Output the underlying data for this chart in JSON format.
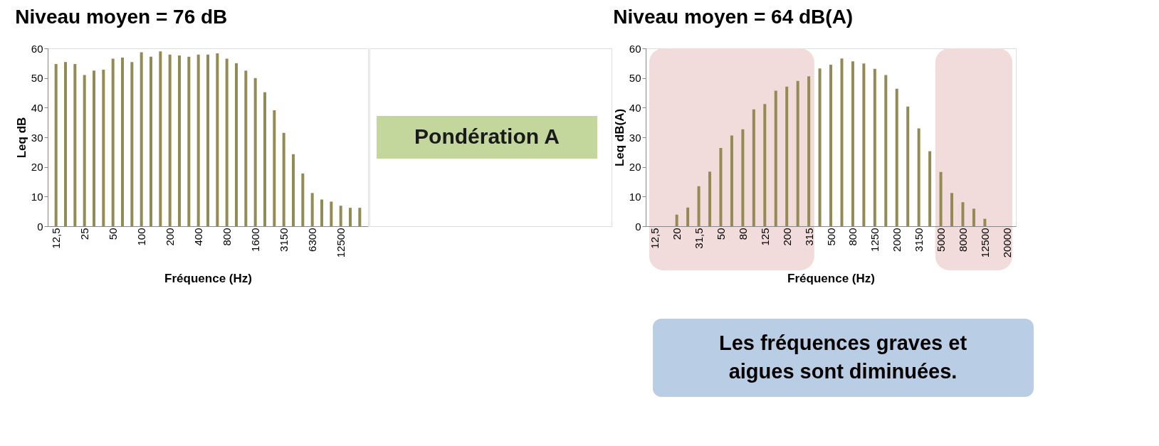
{
  "chart_data": [
    {
      "type": "bar",
      "title": "Niveau moyen = 76 dB",
      "xlabel": "Fréquence (Hz)",
      "ylabel": "Leq dB",
      "categories": [
        "12,5",
        null,
        null,
        "25",
        null,
        null,
        "50",
        null,
        null,
        "100",
        null,
        null,
        "200",
        null,
        null,
        "400",
        null,
        null,
        "800",
        null,
        null,
        "1600",
        null,
        null,
        "3150",
        null,
        null,
        "6300",
        null,
        null,
        "12500",
        null,
        null
      ],
      "series": [
        {
          "color": "#948a54",
          "values": [
            54.7,
            55.4,
            54.7,
            51.0,
            52.5,
            52.8,
            56.5,
            56.9,
            55.4,
            58.7,
            57.2,
            59.0,
            57.9,
            57.6,
            57.2,
            57.9,
            57.9,
            58.3,
            56.5,
            55.0,
            52.5,
            50.0,
            45.2,
            39.1,
            31.5,
            24.3,
            17.8,
            11.2,
            9.0,
            8.3,
            6.9,
            6.2,
            6.2
          ]
        }
      ],
      "ylim": [
        0,
        60
      ],
      "yticks": [
        0,
        10,
        20,
        30,
        40,
        50,
        60
      ],
      "annotations": [
        "Pondération A"
      ]
    },
    {
      "type": "bar",
      "title": "Niveau moyen = 64 dB(A)",
      "xlabel": "Fréquence (Hz)",
      "ylabel": "Leq dB(A)",
      "categories": [
        "12,5",
        null,
        "20",
        null,
        "31,5",
        null,
        "50",
        null,
        "80",
        null,
        "125",
        null,
        "200",
        null,
        "315",
        null,
        "500",
        null,
        "800",
        null,
        "1250",
        null,
        "2000",
        null,
        "3150",
        null,
        "5000",
        null,
        "8000",
        null,
        "12500",
        null,
        "20000"
      ],
      "series": [
        {
          "color": "#948a54",
          "values": [
            null,
            null,
            3.9,
            6.3,
            13.5,
            18.4,
            26.4,
            30.6,
            32.7,
            39.4,
            41.2,
            45.7,
            47.1,
            49.0,
            50.6,
            53.2,
            54.5,
            56.6,
            55.6,
            54.9,
            53.1,
            51.0,
            46.4,
            40.4,
            33.0,
            25.3,
            18.3,
            11.2,
            8.1,
            5.9,
            2.5,
            null,
            null
          ]
        }
      ],
      "ylim": [
        0,
        60
      ],
      "yticks": [
        0,
        10,
        20,
        30,
        40,
        50,
        60
      ],
      "bands": [
        {
          "axis": "x",
          "from": "12,5",
          "to": "315",
          "color": "#f2dcdb"
        },
        {
          "axis": "x",
          "from": "5000",
          "to": "20000",
          "color": "#f2dcdb"
        }
      ],
      "annotations": [
        "Les fréquences graves et\naigues sont diminuées."
      ]
    }
  ]
}
